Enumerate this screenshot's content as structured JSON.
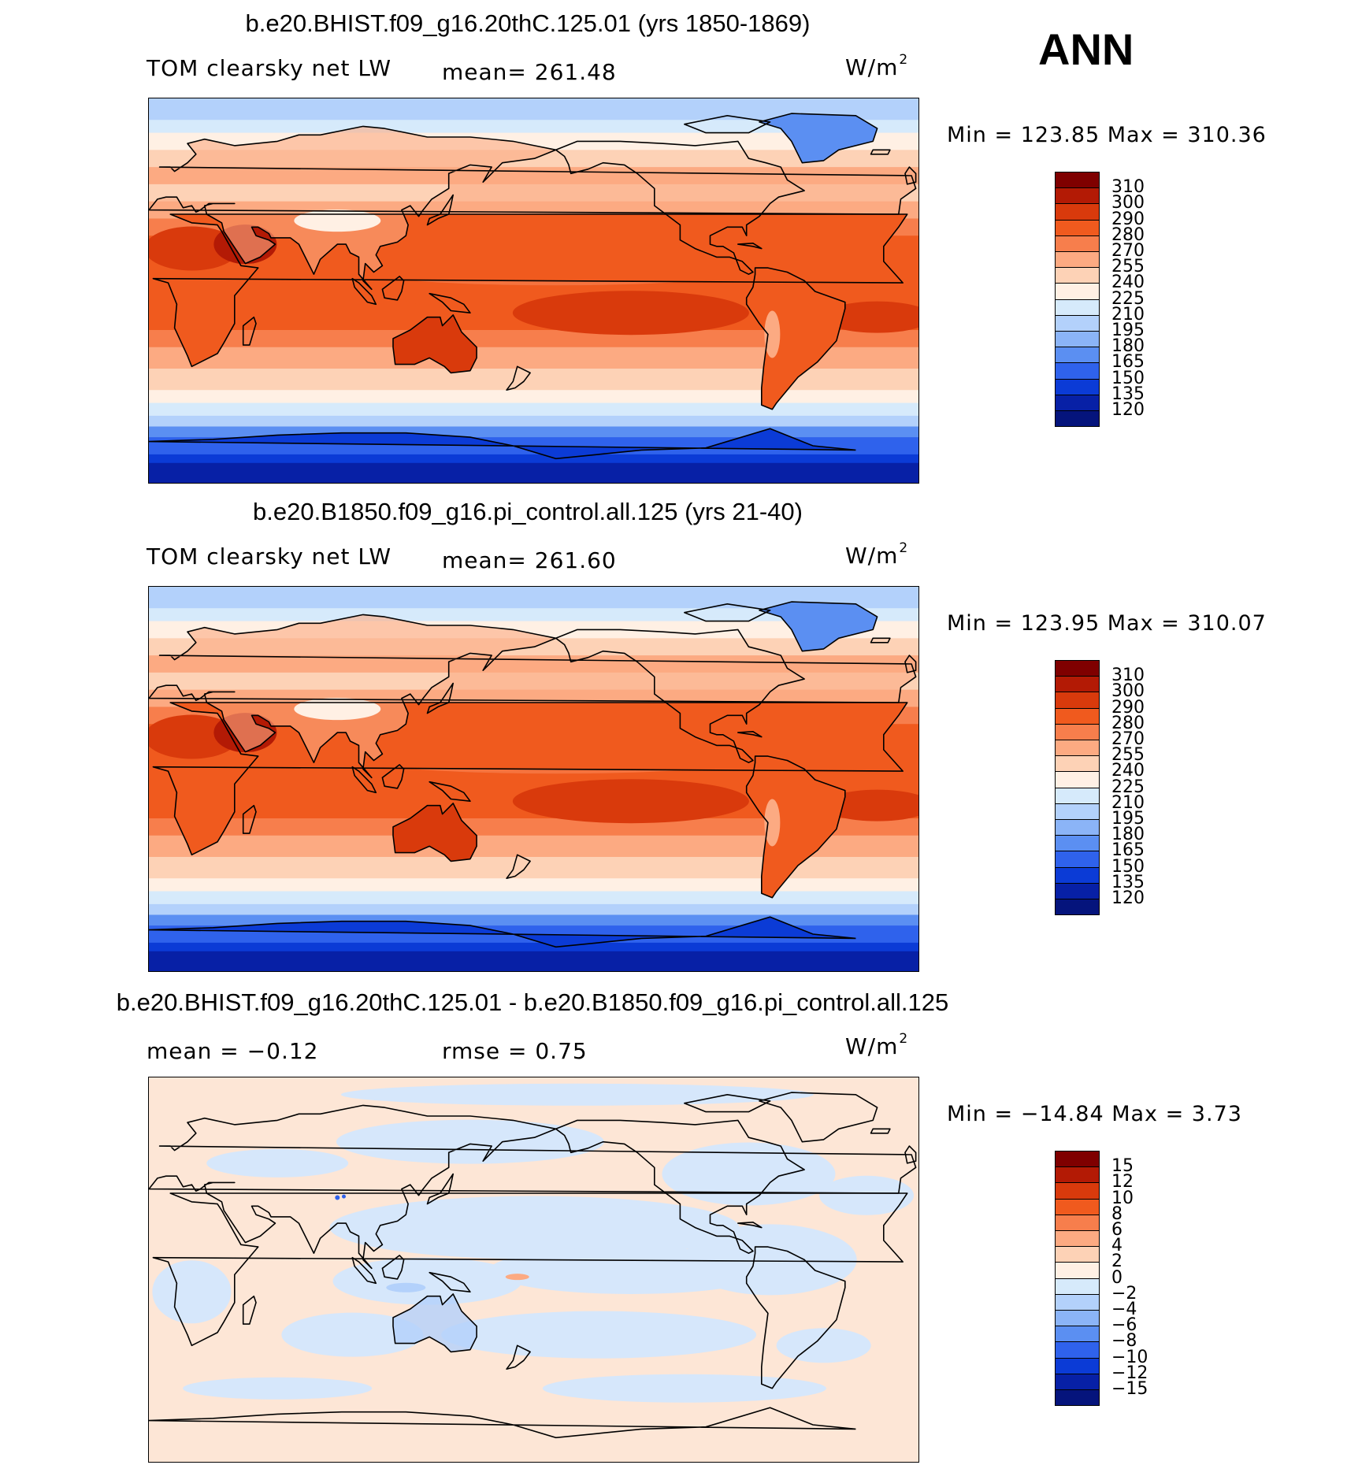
{
  "season_label": "ANN",
  "panels": [
    {
      "title": "b.e20.BHIST.f09_g16.20thC.125.01 (yrs 1850-1869)",
      "variable": "TOM clearsky net LW",
      "stat_text": "mean=  261.48",
      "units_base": "W/m",
      "units_exp": "2",
      "minmax_text": "Min  =  123.85  Max  =  310.36",
      "colorbar_labels": [
        "310",
        "300",
        "290",
        "280",
        "270",
        "255",
        "240",
        "225",
        "210",
        "195",
        "180",
        "165",
        "150",
        "135",
        "120"
      ],
      "colorbar_colors": [
        "#7f0000",
        "#b31a05",
        "#d93a0c",
        "#f05a1e",
        "#f77e4c",
        "#fcaa82",
        "#fdd2b6",
        "#fff0e4",
        "#d6eafb",
        "#b3d1fb",
        "#8bb4f7",
        "#5b8ff2",
        "#2f62ec",
        "#0b3bd6",
        "#0720a6",
        "#05147c"
      ]
    },
    {
      "title": "b.e20.B1850.f09_g16.pi_control.all.125 (yrs 21-40)",
      "variable": "TOM clearsky net LW",
      "stat_text": "mean=  261.60",
      "units_base": "W/m",
      "units_exp": "2",
      "minmax_text": "Min  =  123.95  Max  =  310.07",
      "colorbar_labels": [
        "310",
        "300",
        "290",
        "280",
        "270",
        "255",
        "240",
        "225",
        "210",
        "195",
        "180",
        "165",
        "150",
        "135",
        "120"
      ],
      "colorbar_colors": [
        "#7f0000",
        "#b31a05",
        "#d93a0c",
        "#f05a1e",
        "#f77e4c",
        "#fcaa82",
        "#fdd2b6",
        "#fff0e4",
        "#d6eafb",
        "#b3d1fb",
        "#8bb4f7",
        "#5b8ff2",
        "#2f62ec",
        "#0b3bd6",
        "#0720a6",
        "#05147c"
      ]
    },
    {
      "title": "b.e20.BHIST.f09_g16.20thC.125.01 - b.e20.B1850.f09_g16.pi_control.all.125",
      "stat_left": "mean  =    −0.12",
      "stat_right": "rmse  =      0.75",
      "units_base": "W/m",
      "units_exp": "2",
      "minmax_text": "Min  =  −14.84  Max  =      3.73",
      "colorbar_labels": [
        "15",
        "12",
        "10",
        "8",
        "6",
        "4",
        "2",
        "0",
        "−2",
        "−4",
        "−6",
        "−8",
        "−10",
        "−12",
        "−15"
      ],
      "colorbar_colors": [
        "#7f0000",
        "#b31a05",
        "#d93a0c",
        "#f05a1e",
        "#f77e4c",
        "#fcaa82",
        "#fdd2b6",
        "#fff0e4",
        "#d6eafb",
        "#b3d1fb",
        "#8bb4f7",
        "#5b8ff2",
        "#2f62ec",
        "#0b3bd6",
        "#0720a6",
        "#05147c"
      ]
    }
  ],
  "colors": {
    "land_outline": "#000000",
    "diff_positive": "#fde6d6",
    "diff_negative": "#d6e7fb"
  }
}
